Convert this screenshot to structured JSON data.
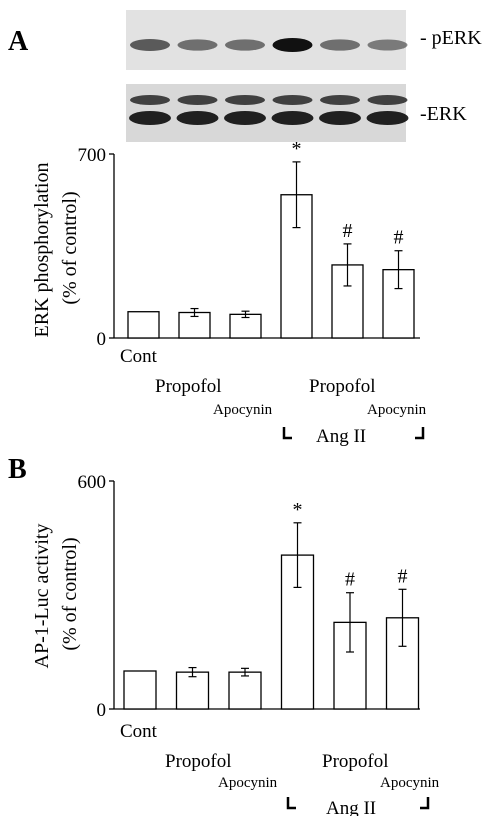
{
  "panels": [
    {
      "panel_label": "A",
      "blot": {
        "rows": [
          {
            "label": "- pERK",
            "intensity": [
              0.65,
              0.55,
              0.55,
              1.0,
              0.55,
              0.5
            ]
          },
          {
            "label": "-ERK",
            "intensity": [
              0.85,
              0.85,
              0.85,
              0.85,
              0.85,
              0.85
            ]
          }
        ]
      },
      "ylabel_line1": "ERK phosphorylation",
      "ylabel_line2": "(% of control)",
      "tick_labels": [
        "0",
        "700"
      ],
      "group_labels": [
        "Cont",
        "Propofol",
        "Apocynin",
        "Propofol",
        "Apocynin"
      ],
      "bracket_label": "Ang II"
    },
    {
      "panel_label": "B",
      "ylabel_line1": "AP-1-Luc activity",
      "ylabel_line2": "(% of control)",
      "tick_labels": [
        "0",
        "600"
      ],
      "group_labels": [
        "Cont",
        "Propofol",
        "Apocynin",
        "Propofol",
        "Apocynin"
      ],
      "bracket_label": "Ang II"
    }
  ],
  "chart_data": [
    {
      "type": "bar",
      "ylabel": "ERK phosphorylation (% of control)",
      "ylim": [
        0,
        700
      ],
      "categories": [
        "Cont",
        "Propofol",
        "Apocynin",
        "Ang II",
        "Ang II + Propofol",
        "Ang II + Apocynin"
      ],
      "values": [
        100,
        97,
        90,
        545,
        278,
        260
      ],
      "errors": [
        0,
        15,
        12,
        125,
        80,
        72
      ],
      "annotations": [
        "",
        "",
        "",
        "*",
        "#",
        "#"
      ],
      "grid": false
    },
    {
      "type": "bar",
      "ylabel": "AP-1-Luc activity (% of control)",
      "ylim": [
        0,
        600
      ],
      "categories": [
        "Cont",
        "Propofol",
        "Apocynin",
        "Ang II",
        "Ang II + Propofol",
        "Ang II + Apocynin"
      ],
      "values": [
        100,
        97,
        97,
        405,
        228,
        240
      ],
      "errors": [
        0,
        12,
        10,
        85,
        78,
        75
      ],
      "annotations": [
        "",
        "",
        "",
        "*",
        "#",
        "#"
      ],
      "grid": false
    }
  ]
}
